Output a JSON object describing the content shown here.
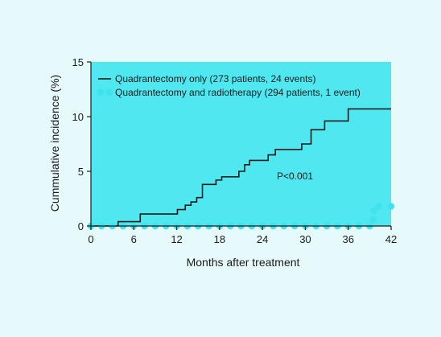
{
  "chart_data": {
    "type": "line",
    "xlabel": "Months after treatment",
    "ylabel": "Cummulative incidence (%)",
    "xlim": [
      0,
      42
    ],
    "ylim": [
      0,
      15
    ],
    "xticks": [
      0,
      6,
      12,
      18,
      24,
      30,
      36,
      42
    ],
    "yticks": [
      0,
      5,
      10,
      15
    ],
    "grid": false,
    "legend_position": "top-left",
    "colors": {
      "panel": "#50e8f0",
      "page": "#e6f9fb",
      "line": "#1a1a1a",
      "dots": "#3fe3ee"
    },
    "annotation": "P<0.001",
    "series": [
      {
        "name": "Quadrantectomy only (273 patients, 24 events)",
        "style": "step-line",
        "x": [
          0,
          3.8,
          6.9,
          12.1,
          13.2,
          14.0,
          14.8,
          15.6,
          17.5,
          18.3,
          19.0,
          20.7,
          21.5,
          22.2,
          23.0,
          24.8,
          25.8,
          29.5,
          30.8,
          32.7,
          35.0,
          36.0,
          42.0
        ],
        "y": [
          0,
          0.4,
          1.1,
          1.5,
          1.9,
          2.2,
          2.6,
          3.8,
          4.2,
          4.5,
          4.5,
          5.0,
          5.6,
          6.0,
          6.0,
          6.5,
          7.0,
          7.5,
          8.8,
          9.6,
          9.6,
          10.7,
          10.7
        ]
      },
      {
        "name": "Quadrantectomy and radiotherapy (294 patients, 1 event)",
        "style": "dots",
        "x": [
          0,
          1.5,
          3,
          4.5,
          6,
          7.5,
          9,
          10.5,
          12,
          13.5,
          15,
          16.5,
          18,
          19.5,
          21,
          22.5,
          24,
          25.5,
          27,
          28.5,
          30,
          31.5,
          33,
          34.5,
          36,
          37.5,
          39,
          39.5,
          39.6,
          40.3,
          42
        ],
        "y": [
          0,
          0,
          0,
          0,
          0,
          0,
          0,
          0,
          0,
          0,
          0,
          0,
          0,
          0,
          0,
          0,
          0,
          0,
          0,
          0,
          0,
          0,
          0,
          0,
          0,
          0,
          0,
          0.6,
          1.4,
          1.8,
          1.8
        ]
      }
    ]
  }
}
